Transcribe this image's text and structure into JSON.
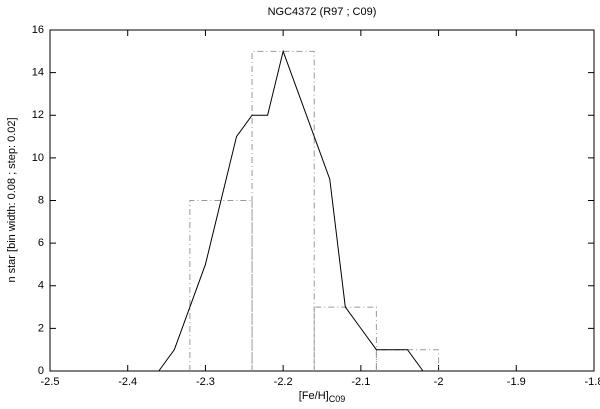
{
  "chart_data": {
    "type": "histogram",
    "title": "NGC4372 (R97 ; C09)",
    "xlabel": "[Fe/H]",
    "xlabel_sub": "C09",
    "ylabel": "n star [bin width: 0.08 ; step: 0.02]",
    "bins": [
      -2.32,
      -2.24,
      -2.16,
      -2.08,
      -2.0
    ],
    "counts": [
      8,
      15,
      3,
      1
    ],
    "color": "#999999",
    "overlay": {
      "type": "line",
      "color": "#000000",
      "x": [
        -2.36,
        -2.34,
        -2.32,
        -2.3,
        -2.28,
        -2.26,
        -2.24,
        -2.22,
        -2.2,
        -2.18,
        -2.16,
        -2.14,
        -2.12,
        -2.1,
        -2.08,
        -2.06,
        -2.04,
        -2.02
      ],
      "values": [
        0,
        1,
        3,
        5,
        8,
        11,
        12,
        12,
        15,
        13,
        11,
        9,
        3,
        2,
        1,
        1,
        1,
        0
      ]
    },
    "xlim": [
      -2.5,
      -1.8
    ],
    "xticks": [
      -2.5,
      -2.4,
      -2.3,
      -2.2,
      -2.1,
      -2,
      -1.9,
      -1.8
    ],
    "ylim": [
      0,
      16
    ],
    "yticks": [
      0,
      2,
      4,
      6,
      8,
      10,
      12,
      14,
      16
    ]
  }
}
